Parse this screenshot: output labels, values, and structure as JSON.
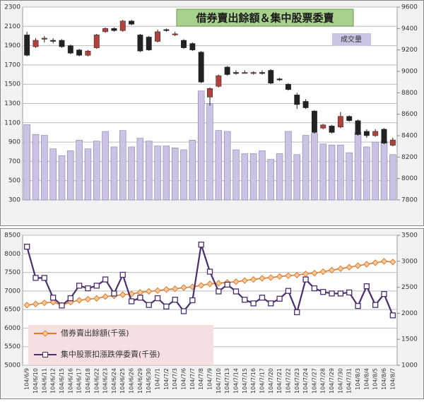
{
  "chart_data": [
    {
      "type": "candlestick",
      "title": "借券賣出餘額＆集中股票委賣",
      "ylim": [
        300,
        2300
      ],
      "yticks": [
        300,
        500,
        700,
        900,
        1100,
        1300,
        1500,
        1700,
        1900,
        2100,
        2300
      ],
      "y2lim": [
        7800,
        9600
      ],
      "y2ticks": [
        7800,
        8000,
        8200,
        8400,
        8600,
        8800,
        9000,
        9200,
        9400,
        9600
      ],
      "grid": true,
      "volume": {
        "name": "成交量",
        "color": "#cbc3e3",
        "values": [
          1080,
          980,
          970,
          830,
          760,
          810,
          920,
          830,
          910,
          1010,
          850,
          1020,
          850,
          940,
          910,
          860,
          860,
          840,
          820,
          920,
          1430,
          1300,
          1020,
          1010,
          820,
          780,
          780,
          810,
          720,
          780,
          1010,
          770,
          970,
          990,
          880,
          870,
          870,
          790,
          1000,
          850,
          900,
          910,
          770
        ]
      },
      "ohlc": {
        "up_color": "#b0413c",
        "down_color": "#222222",
        "open": [
          9340,
          9230,
          9300,
          9290,
          9290,
          9240,
          9200,
          9150,
          9220,
          9370,
          9400,
          9380,
          9470,
          9340,
          9320,
          9280,
          9390,
          9350,
          9290,
          9260,
          9180,
          8760,
          8860,
          9040,
          8990,
          8990,
          8980,
          8990,
          9010,
          8930,
          8880,
          8780,
          8720,
          8630,
          8470,
          8490,
          8480,
          8580,
          8540,
          8440,
          8400,
          8460,
          8310
        ],
        "high": [
          9370,
          9310,
          9330,
          9310,
          9300,
          9250,
          9210,
          9200,
          9350,
          9410,
          9410,
          9480,
          9480,
          9350,
          9330,
          9390,
          9400,
          9370,
          9300,
          9270,
          9190,
          8850,
          8970,
          9050,
          9010,
          9010,
          9000,
          9010,
          9020,
          8940,
          8890,
          8800,
          8740,
          8640,
          8510,
          8500,
          8620,
          8590,
          8550,
          8460,
          8460,
          8470,
          8380
        ],
        "low": [
          9140,
          9220,
          9270,
          9260,
          9220,
          9160,
          9140,
          9140,
          9210,
          9360,
          9370,
          9370,
          9430,
          9180,
          9190,
          9270,
          9370,
          9330,
          9210,
          9190,
          8890,
          8680,
          8850,
          8960,
          8970,
          8980,
          8970,
          8970,
          8880,
          8910,
          8820,
          8650,
          8650,
          8420,
          8460,
          8420,
          8470,
          8530,
          8400,
          8380,
          8390,
          8320,
          8300
        ],
        "close": [
          9150,
          9290,
          9310,
          9280,
          9230,
          9170,
          9150,
          9190,
          9340,
          9400,
          9380,
          9470,
          9440,
          9190,
          9200,
          9370,
          9380,
          9350,
          9220,
          9200,
          8900,
          8840,
          8960,
          8970,
          8980,
          8990,
          8990,
          8980,
          8890,
          8920,
          8830,
          8690,
          8660,
          8430,
          8500,
          8430,
          8580,
          8540,
          8410,
          8400,
          8440,
          8330,
          8360
        ]
      }
    },
    {
      "type": "line",
      "categories": [
        "104/6/9",
        "104/6/10",
        "104/6/11",
        "104/6/12",
        "104/6/15",
        "104/6/16",
        "104/6/17",
        "104/6/18",
        "104/6/22",
        "104/6/23",
        "104/6/24",
        "104/6/25",
        "104/6/26",
        "104/6/29",
        "104/6/30",
        "104/7/1",
        "104/7/2",
        "104/7/3",
        "104/7/6",
        "104/7/7",
        "104/7/8",
        "104/7/9",
        "104/7/10",
        "104/7/13",
        "104/7/14",
        "104/7/15",
        "104/7/16",
        "104/7/17",
        "104/7/20",
        "104/7/21",
        "104/7/22",
        "104/7/23",
        "104/7/24",
        "104/7/27",
        "104/7/28",
        "104/7/29",
        "104/7/30",
        "104/7/31",
        "104/8/3",
        "104/8/4",
        "104/8/5",
        "104/8/6",
        "104/8/7"
      ],
      "ylim": [
        5000,
        8500
      ],
      "yticks": [
        5000,
        5500,
        6000,
        6500,
        7000,
        7500,
        8000,
        8500
      ],
      "y2lim": [
        1000,
        3500
      ],
      "y2ticks": [
        1000,
        1500,
        2000,
        2500,
        3000,
        3500
      ],
      "grid": true,
      "series": [
        {
          "name": "借券賣出餘額(千張)",
          "color": "#e07b2a",
          "marker": "diamond",
          "values": [
            6620,
            6650,
            6680,
            6700,
            6620,
            6700,
            6750,
            6780,
            6800,
            6850,
            6870,
            6900,
            6920,
            6960,
            6990,
            7010,
            7040,
            7060,
            7090,
            7110,
            7150,
            7190,
            7210,
            7230,
            7250,
            7280,
            7310,
            7340,
            7360,
            7390,
            7410,
            7430,
            7460,
            7480,
            7520,
            7560,
            7600,
            7640,
            7680,
            7720,
            7760,
            7800,
            7780
          ]
        },
        {
          "name": "集中股票扣漲跌停委賣(千張)",
          "color": "#4b2e6e",
          "marker": "square",
          "axis": "y2",
          "values": [
            3280,
            2680,
            2680,
            2300,
            2150,
            2290,
            2530,
            2480,
            2530,
            2650,
            2380,
            2740,
            2230,
            2300,
            2160,
            2290,
            2130,
            2260,
            2040,
            2250,
            3320,
            2800,
            2420,
            2550,
            2420,
            2260,
            2190,
            2300,
            2190,
            2280,
            2430,
            2020,
            2650,
            2480,
            2410,
            2380,
            2380,
            2400,
            2140,
            2520,
            2160,
            2370,
            1960
          ]
        }
      ]
    }
  ]
}
